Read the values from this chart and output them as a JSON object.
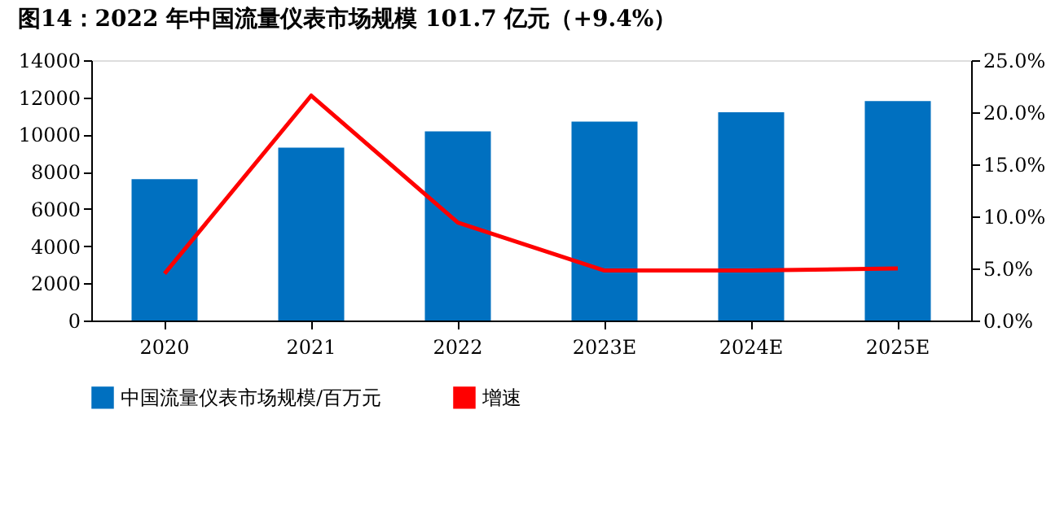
{
  "chart_data": {
    "type": "bar",
    "title": "图14：2022 年中国流量仪表市场规模 101.7 亿元（+9.4%）",
    "categories": [
      "2020",
      "2021",
      "2022",
      "2023E",
      "2024E",
      "2025E"
    ],
    "series": [
      {
        "name": "中国流量仪表市场规模/百万元",
        "color": "#0070c0",
        "values": [
          7600,
          9300,
          10170,
          10700,
          11200,
          11800
        ]
      },
      {
        "name": "增速",
        "type": "line",
        "axis": "y2",
        "color": "#ff0000",
        "values": [
          4.5,
          21.6,
          9.4,
          4.8,
          4.8,
          5.0
        ]
      }
    ],
    "ylim": [
      0,
      14000
    ],
    "yticks": [
      0,
      2000,
      4000,
      6000,
      8000,
      10000,
      12000,
      14000
    ],
    "y2lim": [
      0,
      25
    ],
    "y2ticks": [
      {
        "value": 0,
        "label": "0.0%"
      },
      {
        "value": 5,
        "label": "5.0%"
      },
      {
        "value": 10,
        "label": "10.0%"
      },
      {
        "value": 15,
        "label": "15.0%"
      },
      {
        "value": 20,
        "label": "20.0%"
      },
      {
        "value": 25,
        "label": "25.0%"
      }
    ],
    "legend": "bottom",
    "grid": false,
    "marker": "none",
    "line_style": "solid"
  }
}
